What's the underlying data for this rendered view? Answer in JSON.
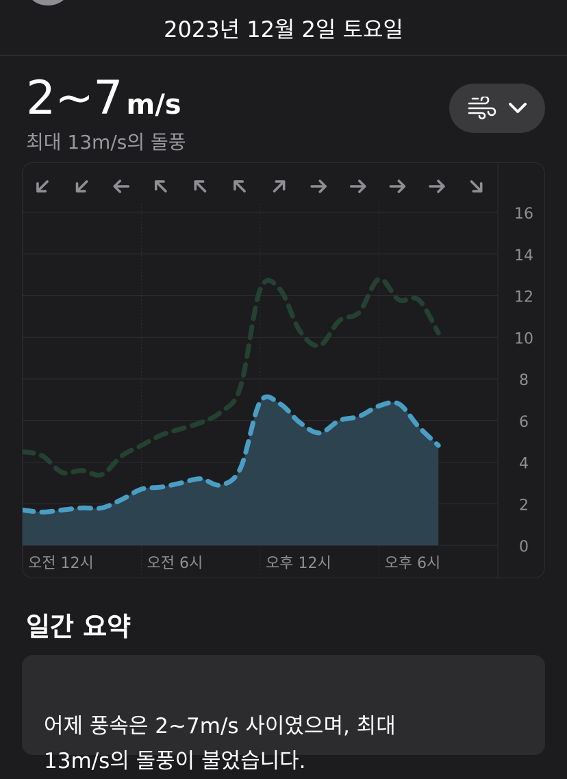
{
  "header": {
    "date_title": "2023년 12월 2일 토요일"
  },
  "wind": {
    "speed_value": "2~7",
    "speed_unit": "m/s",
    "gust_text": "최대 13m/s의 돌풍"
  },
  "picker": {
    "icon": "wind-icon",
    "chevron": "chevron-down-icon"
  },
  "colors": {
    "wind_line": "#4a9ec4",
    "wind_fill": "#2d4350",
    "gust_line": "#244232",
    "grid": "#2e2e30",
    "axis_text": "#8e8e93",
    "arrow": "#8e8e93"
  },
  "chart_data": {
    "type": "area",
    "x_unit": "hour",
    "x": [
      0,
      1,
      2,
      3,
      4,
      5,
      6,
      7,
      8,
      9,
      10,
      11,
      12,
      13,
      14,
      15,
      16,
      17,
      18,
      19,
      20,
      21,
      22,
      23,
      24
    ],
    "x_ticks": [
      {
        "value": 0,
        "label": "오전 12시"
      },
      {
        "value": 6,
        "label": "오전 6시"
      },
      {
        "value": 12,
        "label": "오후 12시"
      },
      {
        "value": 18,
        "label": "오후 6시"
      }
    ],
    "ylim": [
      0,
      16
    ],
    "y_ticks": [
      0,
      2,
      4,
      6,
      8,
      10,
      12,
      14,
      16
    ],
    "grid": true,
    "series": [
      {
        "values": [
          1.7,
          1.6,
          1.7,
          1.8,
          1.8,
          2.2,
          2.7,
          2.8,
          3.0,
          3.2,
          2.9,
          3.7,
          6.9,
          6.8,
          5.9,
          5.4,
          6.0,
          6.2,
          6.7,
          6.8,
          5.7,
          4.8,
          null,
          null,
          null
        ],
        "style": "area-dashed"
      },
      {
        "values": [
          4.5,
          4.3,
          3.5,
          3.6,
          3.4,
          4.3,
          4.8,
          5.3,
          5.6,
          5.9,
          6.4,
          7.6,
          12.3,
          12.3,
          10.3,
          9.6,
          10.8,
          11.2,
          12.8,
          11.8,
          11.8,
          10.2,
          null,
          null,
          null
        ],
        "style": "line-dashed"
      }
    ],
    "direction_arrows": [
      "sw",
      "sw",
      "w",
      "nw",
      "nw",
      "nw",
      "ne",
      "e",
      "e",
      "e",
      "e",
      "se"
    ]
  },
  "summary": {
    "title": "일간 요약",
    "text": "어제 풍속은 2~7m/s 사이였으며, 최대\n13m/s의 돌풍이 불었습니다."
  }
}
